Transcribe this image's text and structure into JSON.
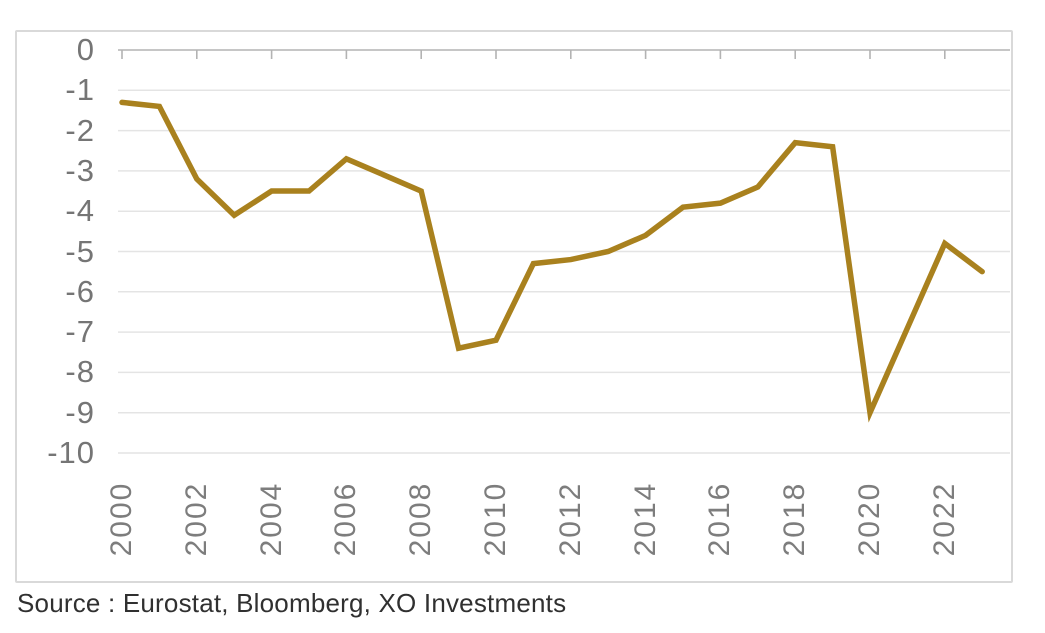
{
  "chart_data": {
    "type": "line",
    "title": "",
    "xlabel": "",
    "ylabel": "",
    "x": [
      2000,
      2001,
      2002,
      2003,
      2004,
      2005,
      2006,
      2007,
      2008,
      2009,
      2010,
      2011,
      2012,
      2013,
      2014,
      2015,
      2016,
      2017,
      2018,
      2019,
      2020,
      2021,
      2022,
      2023
    ],
    "values": [
      -1.3,
      -1.4,
      -3.2,
      -4.1,
      -3.5,
      -3.5,
      -2.7,
      -3.1,
      -3.5,
      -7.4,
      -7.2,
      -5.3,
      -5.2,
      -5.0,
      -4.6,
      -3.9,
      -3.8,
      -3.4,
      -2.3,
      -2.4,
      -9.0,
      -6.9,
      -4.8,
      -5.5
    ],
    "ylim": [
      -10,
      0
    ],
    "xlim": [
      2000,
      2023
    ],
    "grid": true,
    "legend": false,
    "line_color": "#A9811E",
    "y_ticks": {
      "values": [
        0,
        -1,
        -2,
        -3,
        -4,
        -5,
        -6,
        -7,
        -8,
        -9,
        -10
      ],
      "labels": [
        "0",
        "-1",
        "-2",
        "-3",
        "-4",
        "-5",
        "-6",
        "-7",
        "-8",
        "-9",
        "-10"
      ]
    },
    "x_ticks": {
      "values": [
        2000,
        2002,
        2004,
        2006,
        2008,
        2010,
        2012,
        2014,
        2016,
        2018,
        2020,
        2022
      ],
      "labels": [
        "2000",
        "2002",
        "2004",
        "2006",
        "2008",
        "2010",
        "2012",
        "2014",
        "2016",
        "2018",
        "2020",
        "2022"
      ],
      "rotation": -90
    },
    "source": "Source : Eurostat, Bloomberg, XO Investments"
  },
  "colors": {
    "line": "#A9811E",
    "gridline": "#e4e4e4",
    "axis": "#b3b3b3",
    "y_tick_label": "#757575",
    "x_tick_label": "#7d7d7d",
    "source_text": "#303030",
    "panel_border": "#d9d9d9",
    "background": "#ffffff"
  }
}
